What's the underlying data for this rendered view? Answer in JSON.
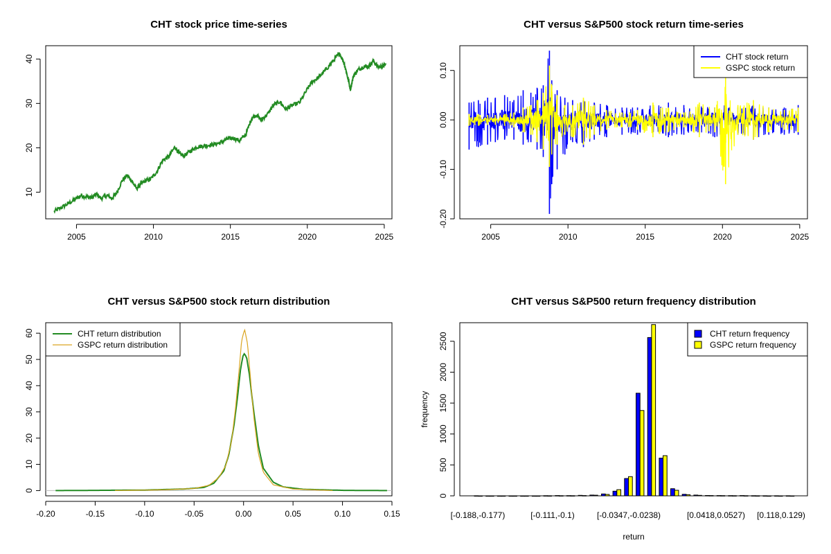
{
  "chart_data": [
    {
      "id": "price",
      "type": "line",
      "title": "CHT stock price time-series",
      "xlabel": "",
      "ylabel": "",
      "xlim": [
        2003.0,
        2025.5
      ],
      "ylim": [
        4,
        43
      ],
      "xticks": [
        2005,
        2010,
        2015,
        2020,
        2025
      ],
      "yticks": [
        10,
        20,
        30,
        40
      ],
      "color": "#228B22",
      "series": [
        {
          "x": [
            2003.55,
            2004.0,
            2004.5,
            2005.0,
            2005.3,
            2005.7,
            2006.0,
            2006.3,
            2006.6,
            2007.0,
            2007.3,
            2007.6,
            2008.0,
            2008.3,
            2008.6,
            2008.9,
            2009.2,
            2009.5,
            2009.8,
            2010.2,
            2010.6,
            2011.0,
            2011.4,
            2011.7,
            2012.0,
            2012.4,
            2012.8,
            2013.2,
            2013.6,
            2014.0,
            2014.4,
            2014.8,
            2015.2,
            2015.6,
            2016.0,
            2016.4,
            2016.7,
            2017.0,
            2017.4,
            2017.8,
            2018.2,
            2018.6,
            2019.0,
            2019.5,
            2020.0,
            2020.3,
            2020.7,
            2021.0,
            2021.4,
            2021.8,
            2022.1,
            2022.4,
            2022.6,
            2022.8,
            2023.0,
            2023.3,
            2023.6,
            2024.0,
            2024.3,
            2024.6,
            2024.9,
            2025.1
          ],
          "y": [
            5.7,
            6.5,
            7.5,
            8.6,
            9.3,
            8.9,
            8.8,
            9.6,
            8.6,
            9.3,
            8.6,
            9.8,
            12.8,
            13.8,
            12.5,
            10.8,
            11.9,
            12.6,
            12.9,
            14.5,
            17.2,
            18.0,
            20.2,
            18.6,
            18.2,
            19.3,
            20.2,
            20.4,
            20.6,
            20.8,
            21.2,
            22.0,
            22.2,
            21.6,
            23.0,
            26.8,
            27.4,
            26.3,
            27.5,
            29.6,
            30.4,
            28.7,
            29.5,
            30.2,
            33.2,
            34.8,
            35.8,
            36.8,
            38.4,
            40.1,
            41.3,
            39.0,
            36.2,
            33.2,
            36.2,
            37.6,
            38.2,
            38.4,
            39.6,
            38.2,
            38.4,
            38.8
          ]
        }
      ]
    },
    {
      "id": "returns",
      "type": "line",
      "title": "CHT versus S&P500 stock return time-series",
      "xlabel": "",
      "ylabel": "",
      "xlim": [
        2003.0,
        2025.5
      ],
      "ylim": [
        -0.2,
        0.15
      ],
      "xticks": [
        2005,
        2010,
        2015,
        2020,
        2025
      ],
      "yticks": [
        -0.2,
        -0.1,
        0.0,
        0.1
      ],
      "ytick_labels": [
        "-0.20",
        "-0.10",
        "0.00",
        "0.10"
      ],
      "legend": {
        "position": "top-right",
        "entries": [
          "CHT stock return",
          "GSPC stock return"
        ]
      },
      "series": [
        {
          "name": "CHT stock return",
          "color": "#0000FF",
          "x": [
            2003.6,
            2004.2,
            2004.8,
            2005.3,
            2005.9,
            2006.5,
            2007.1,
            2007.6,
            2008.0,
            2008.4,
            2008.8,
            2008.95,
            2009.3,
            2009.8,
            2010.3,
            2011.0,
            2011.7,
            2012.5,
            2013.5,
            2014.5,
            2015.5,
            2016.5,
            2017.5,
            2018.5,
            2019.5,
            2020.2,
            2021.0,
            2022.0,
            2023.0,
            2024.0,
            2024.9
          ],
          "lo": [
            -0.06,
            -0.055,
            -0.05,
            -0.045,
            -0.04,
            -0.04,
            -0.05,
            -0.045,
            -0.06,
            -0.075,
            -0.19,
            -0.13,
            -0.1,
            -0.07,
            -0.045,
            -0.055,
            -0.04,
            -0.035,
            -0.03,
            -0.03,
            -0.025,
            -0.035,
            -0.03,
            -0.03,
            -0.035,
            -0.035,
            -0.03,
            -0.04,
            -0.03,
            -0.03,
            -0.03
          ],
          "hi": [
            0.035,
            0.04,
            0.045,
            0.045,
            0.05,
            0.04,
            0.06,
            0.055,
            0.065,
            0.07,
            0.14,
            0.08,
            0.06,
            0.045,
            0.04,
            0.04,
            0.035,
            0.03,
            0.025,
            0.025,
            0.03,
            0.035,
            0.03,
            0.03,
            0.025,
            0.03,
            0.025,
            0.03,
            0.025,
            0.025,
            0.03
          ]
        },
        {
          "name": "GSPC stock return",
          "color": "#FFFF00",
          "x": [
            2003.6,
            2004.2,
            2004.8,
            2005.3,
            2005.9,
            2006.5,
            2007.1,
            2007.6,
            2008.0,
            2008.4,
            2008.8,
            2008.95,
            2009.3,
            2009.8,
            2010.3,
            2011.0,
            2011.7,
            2012.5,
            2013.5,
            2014.5,
            2015.5,
            2016.5,
            2017.5,
            2018.5,
            2019.5,
            2020.2,
            2021.0,
            2022.0,
            2023.0,
            2024.0,
            2024.9
          ],
          "lo": [
            -0.012,
            -0.012,
            -0.01,
            -0.01,
            -0.012,
            -0.015,
            -0.025,
            -0.03,
            -0.045,
            -0.06,
            -0.095,
            -0.07,
            -0.05,
            -0.03,
            -0.035,
            -0.05,
            -0.03,
            -0.02,
            -0.015,
            -0.02,
            -0.035,
            -0.025,
            -0.015,
            -0.035,
            -0.025,
            -0.13,
            -0.03,
            -0.04,
            -0.025,
            -0.02,
            -0.025
          ],
          "hi": [
            0.012,
            0.012,
            0.01,
            0.01,
            0.012,
            0.015,
            0.025,
            0.03,
            0.04,
            0.055,
            0.11,
            0.07,
            0.05,
            0.03,
            0.03,
            0.045,
            0.03,
            0.02,
            0.015,
            0.02,
            0.035,
            0.025,
            0.015,
            0.035,
            0.025,
            0.09,
            0.03,
            0.04,
            0.025,
            0.02,
            0.025
          ]
        }
      ]
    },
    {
      "id": "density",
      "type": "line",
      "title": "CHT versus S&P500 stock return distribution",
      "xlabel": "",
      "ylabel": "",
      "xlim": [
        -0.2,
        0.15
      ],
      "ylim": [
        -2,
        64
      ],
      "xticks": [
        -0.2,
        -0.15,
        -0.1,
        -0.05,
        0.0,
        0.05,
        0.1,
        0.15
      ],
      "xtick_labels": [
        "-0.20",
        "-0.15",
        "-0.10",
        "-0.05",
        "0.00",
        "0.05",
        "0.10",
        "0.15"
      ],
      "yticks": [
        0,
        10,
        20,
        30,
        40,
        50,
        60
      ],
      "legend": {
        "position": "top-left",
        "entries": [
          "CHT return distribution",
          "GSPC return distribution"
        ]
      },
      "series": [
        {
          "name": "CHT return distribution",
          "color": "#228B22",
          "x": [
            -0.19,
            -0.1,
            -0.06,
            -0.04,
            -0.03,
            -0.02,
            -0.015,
            -0.01,
            -0.006,
            -0.003,
            0.0,
            0.003,
            0.006,
            0.01,
            0.015,
            0.02,
            0.03,
            0.04,
            0.06,
            0.1,
            0.145
          ],
          "y": [
            0,
            0.2,
            0.6,
            1.2,
            2.8,
            7.5,
            13.5,
            24.0,
            36.0,
            46.5,
            52.5,
            51.0,
            44.0,
            31.0,
            17.0,
            8.5,
            3.2,
            1.4,
            0.5,
            0.1,
            0
          ]
        },
        {
          "name": "GSPC return distribution",
          "color": "#DAA520",
          "x": [
            -0.13,
            -0.08,
            -0.05,
            -0.035,
            -0.025,
            -0.018,
            -0.012,
            -0.008,
            -0.004,
            -0.002,
            0.001,
            0.004,
            0.007,
            0.01,
            0.015,
            0.02,
            0.03,
            0.05,
            0.09
          ],
          "y": [
            0,
            0.3,
            0.8,
            2.0,
            5.0,
            9.5,
            19.0,
            32.0,
            48.0,
            57.0,
            61.5,
            56.0,
            43.0,
            29.0,
            14.0,
            7.0,
            2.2,
            0.6,
            0
          ]
        }
      ]
    },
    {
      "id": "histogram",
      "type": "bar",
      "title": "CHT versus S&P500 return frequency distribution",
      "xlabel": "return",
      "ylabel": "frequency",
      "ylim": [
        0,
        2800
      ],
      "yticks": [
        0,
        500,
        1000,
        1500,
        2000,
        2500
      ],
      "category_labels": [
        "[-0.188,-0.177)",
        "[-0.111,-0.1)",
        "[-0.0347,-0.0238)",
        "[0.0418,0.0527)",
        "[0.118,0.129)"
      ],
      "legend": {
        "position": "top-right",
        "entries": [
          "CHT return frequency",
          "GSPC return frequency"
        ]
      },
      "series": [
        {
          "name": "CHT return frequency",
          "color": "#0000FF",
          "values": [
            1,
            0,
            0,
            0,
            0,
            0,
            2,
            4,
            3,
            8,
            12,
            30,
            75,
            280,
            1660,
            2560,
            610,
            115,
            25,
            12,
            6,
            5,
            3,
            5,
            2,
            1,
            1,
            1
          ]
        },
        {
          "name": "GSPC return frequency",
          "color": "#FFFF00",
          "values": [
            0,
            0,
            0,
            0,
            0,
            0,
            1,
            2,
            2,
            5,
            10,
            22,
            100,
            310,
            1380,
            2770,
            650,
            90,
            18,
            8,
            4,
            3,
            2,
            2,
            1,
            0,
            0,
            0
          ]
        }
      ]
    }
  ]
}
